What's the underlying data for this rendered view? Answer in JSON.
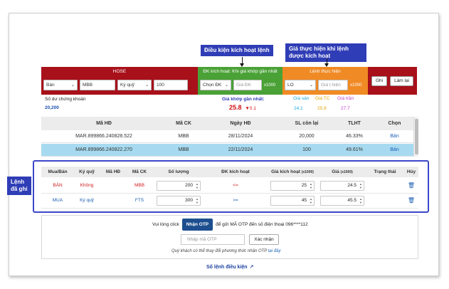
{
  "callouts": {
    "trigger_condition": "Điều kiện kích hoạt lệnh",
    "execution_price": "Giá thực hiện khi lệnh được kích hoạt",
    "placed_orders": "Lệnh đã ghi"
  },
  "order_bar": {
    "hose_title": "HOSE",
    "side": "Bán",
    "symbol": "MBB",
    "account": "Ký quỹ",
    "quantity": "100",
    "trigger_title": "ĐK kích hoạt: Khi giá khớp gần nhất",
    "condition_select": "Chọn ĐK",
    "trigger_price_placeholder": "Giá ĐK",
    "trigger_unit": "x1000",
    "exec_title": "Lệnh thực hiện",
    "order_type": "LO",
    "exec_price_placeholder": "Giá t.hiện",
    "exec_unit": "x1000",
    "record_button": "Ghi",
    "reset_button": "Làm lại"
  },
  "market_info": {
    "balance_label": "Số dư chứng khoán",
    "balance_value": "20,200",
    "last_price_label": "Giá khớp gần nhất:",
    "last_price_value": "25.8",
    "last_price_change": "▼0.1",
    "floor_label": "Giá sàn",
    "floor_value": "24.1",
    "ref_label": "Giá TC",
    "ref_value": "25.9",
    "ceiling_label": "Giá trần",
    "ceiling_value": "27.7",
    "colors": {
      "floor": "#1fa8d8",
      "ref": "#e0a400",
      "ceiling": "#c040c8",
      "down": "#d01010"
    }
  },
  "contracts_table": {
    "headers": [
      "Mã HĐ",
      "Mã CK",
      "Ngày HĐ",
      "SL còn lại",
      "TLHT",
      "Chọn"
    ],
    "rows": [
      {
        "contract": "MAR.899866.240828.522",
        "symbol": "MBB",
        "date": "28/11/2024",
        "remaining": "20,000",
        "ratio": "46.33%",
        "action": "Bán"
      },
      {
        "contract": "MAR.899866.240822.270",
        "symbol": "MBB",
        "date": "22/11/2024",
        "remaining": "100",
        "ratio": "49.61%",
        "action": "Bán"
      }
    ]
  },
  "placed_table": {
    "headers": [
      "Mua/Bán",
      "Ký quỹ",
      "Mã HĐ",
      "Mã CK",
      "Số lượng",
      "ĐK kích hoạt",
      "Giá kích hoạt",
      "(x1000)",
      "Giá",
      "(x1000)",
      "Trạng thái",
      "Hủy"
    ],
    "rows": [
      {
        "side": "BÁN",
        "margin": "Không",
        "contract": "",
        "symbol": "MBB",
        "qty": "200",
        "cond": "<=",
        "trigger_price": "25",
        "price": "24.5",
        "status": "",
        "color": "#d02020"
      },
      {
        "side": "MUA",
        "margin": "Ký quỹ",
        "contract": "",
        "symbol": "FTS",
        "qty": "300",
        "cond": ">=",
        "trigger_price": "45",
        "price": "45.5",
        "status": "",
        "color": "#1a5fb4"
      }
    ]
  },
  "otp": {
    "prefix": "Vui lòng click",
    "button": "Nhận OTP",
    "suffix": "để gửi MÃ OTP đến số điện thoại 096****112",
    "input_placeholder": "Nhập mã OTP",
    "confirm": "Xác nhận",
    "note": "Quý khách có thể thay đổi phương thức nhận OTP",
    "note_link": "tại đây"
  },
  "footer_link": "Sổ lệnh điều kiện"
}
